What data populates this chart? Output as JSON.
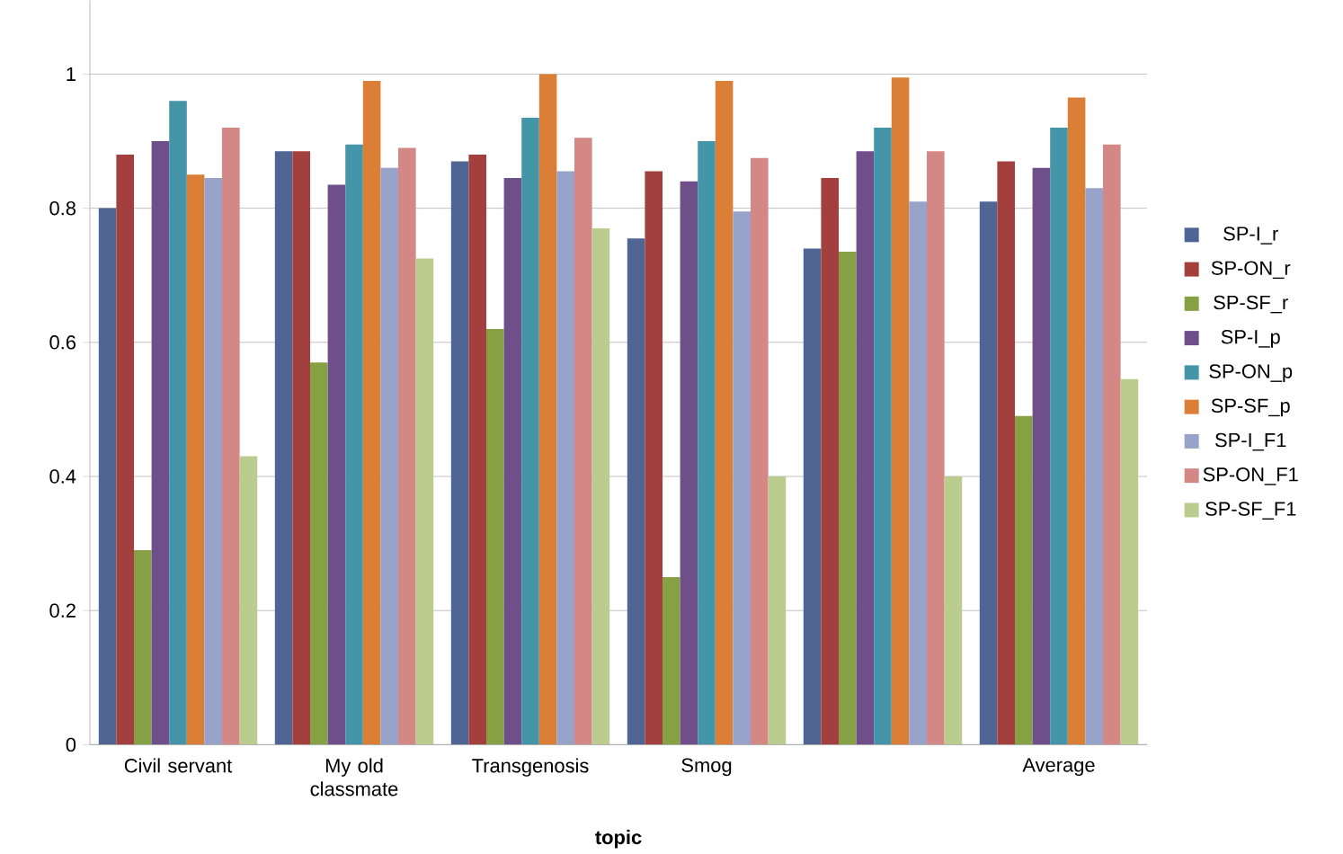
{
  "chart_data": {
    "type": "bar",
    "xlabel": "topic",
    "categories": [
      "Civil servant",
      "My old classmate",
      "Transgenosis",
      "Smog",
      null,
      "Average"
    ],
    "series": [
      {
        "name": "SP-I_r",
        "color": "#4f6594",
        "values": [
          0.8,
          0.885,
          0.87,
          0.755,
          0.74,
          0.81
        ]
      },
      {
        "name": "SP-ON_r",
        "color": "#a3403d",
        "values": [
          0.88,
          0.885,
          0.88,
          0.855,
          0.845,
          0.87
        ]
      },
      {
        "name": "SP-SF_r",
        "color": "#86a044",
        "values": [
          0.29,
          0.57,
          0.62,
          0.25,
          0.735,
          0.49
        ]
      },
      {
        "name": "SP-I_p",
        "color": "#6e4f8a",
        "values": [
          0.9,
          0.835,
          0.845,
          0.84,
          0.885,
          0.86
        ]
      },
      {
        "name": "SP-ON_p",
        "color": "#4595a8",
        "values": [
          0.96,
          0.895,
          0.935,
          0.9,
          0.92,
          0.92
        ]
      },
      {
        "name": "SP-SF_p",
        "color": "#dc7f36",
        "values": [
          0.85,
          0.99,
          1.0,
          0.99,
          0.995,
          0.965
        ]
      },
      {
        "name": "SP-I_F1",
        "color": "#97a3c8",
        "values": [
          0.845,
          0.86,
          0.855,
          0.795,
          0.81,
          0.83
        ]
      },
      {
        "name": "SP-ON_F1",
        "color": "#d48885",
        "values": [
          0.92,
          0.89,
          0.905,
          0.875,
          0.885,
          0.895
        ]
      },
      {
        "name": "SP-SF_F1",
        "color": "#bacd8f",
        "values": [
          0.43,
          0.725,
          0.77,
          0.4,
          0.4,
          0.545
        ]
      }
    ],
    "ylim": [
      0,
      1.11
    ],
    "yticks": [
      0,
      0.2,
      0.4,
      0.6,
      0.8,
      1
    ],
    "grid": "y",
    "legend": "right"
  }
}
